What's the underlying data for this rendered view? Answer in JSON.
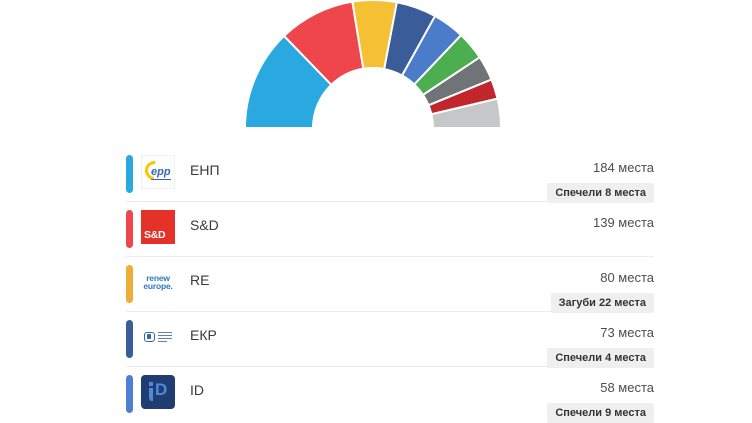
{
  "chart_data": {
    "type": "pie",
    "variant": "hemicycle-half-donut",
    "total_seats": 720,
    "legend_position": "list-below",
    "segments": [
      {
        "label": "ЕНП",
        "seats": 184,
        "color": "#29a9e0"
      },
      {
        "label": "S&D",
        "seats": 139,
        "color": "#ef464e"
      },
      {
        "label": "RE",
        "seats": 80,
        "color": "#f5c033"
      },
      {
        "label": "ЕКР",
        "seats": 73,
        "color": "#3a5d99"
      },
      {
        "label": "ID",
        "seats": 58,
        "color": "#4a7cc9"
      },
      {
        "label": "green-segment",
        "seats": 52,
        "color": "#4cae50"
      },
      {
        "label": "gray-segment",
        "seats": 45,
        "color": "#707476"
      },
      {
        "label": "dark-red-segment",
        "seats": 36,
        "color": "#c2262d"
      },
      {
        "label": "light-gray-segment",
        "seats": 53,
        "color": "#c5c7c9"
      }
    ]
  },
  "results_list": {
    "rows": [
      {
        "party": "ЕНП",
        "seats_text": "184 места",
        "change_text": "Спечели 8 места",
        "accent_color": "#29a9e0",
        "logo": {
          "kind": "epp",
          "text": "epp"
        }
      },
      {
        "party": "S&D",
        "seats_text": "139 места",
        "change_text": "",
        "accent_color": "#ef464e",
        "logo": {
          "kind": "sd",
          "text": "S&D"
        }
      },
      {
        "party": "RE",
        "seats_text": "80 места",
        "change_text": "Загуби 22 места",
        "accent_color": "#eeac38",
        "logo": {
          "kind": "renew",
          "line1": "renew",
          "line2": "europe."
        }
      },
      {
        "party": "ЕКР",
        "seats_text": "73 места",
        "change_text": "Спечели 4 места",
        "accent_color": "#3a5d99",
        "logo": {
          "kind": "ecr"
        }
      },
      {
        "party": "ID",
        "seats_text": "58 места",
        "change_text": "Спечели 9 места",
        "accent_color": "#4d80d2",
        "logo": {
          "kind": "id",
          "text": "D"
        }
      }
    ]
  }
}
